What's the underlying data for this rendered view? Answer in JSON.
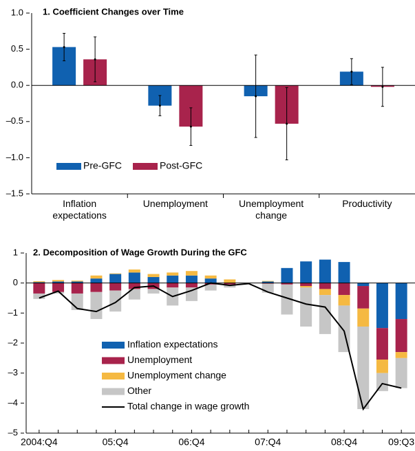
{
  "chart_data": [
    {
      "type": "bar_error",
      "title": "1. Coefficient Changes over Time",
      "categories": [
        "Inflation expectations",
        "Unemployment",
        "Unemployment change",
        "Productivity"
      ],
      "series": [
        {
          "name": "Pre-GFC",
          "color": "#1061b0",
          "values": [
            0.53,
            -0.28,
            -0.15,
            0.19
          ],
          "errors": [
            0.19,
            0.14,
            0.57,
            0.18
          ]
        },
        {
          "name": "Post-GFC",
          "color": "#a8234c",
          "values": [
            0.36,
            -0.57,
            -0.53,
            -0.02
          ],
          "errors": [
            0.31,
            0.26,
            0.5,
            0.27
          ]
        }
      ],
      "ylim": [
        -1.5,
        1.0
      ],
      "yticks": [
        {
          "value": -1.5,
          "label": "–1.5"
        },
        {
          "value": -1.0,
          "label": "–1.0"
        },
        {
          "value": -0.5,
          "label": "–0.5"
        },
        {
          "value": 0,
          "label": "0.0"
        },
        0.5,
        {
          "value": 1.0,
          "label": "1.0"
        }
      ],
      "legend": "lower-left"
    },
    {
      "type": "stacked_bar",
      "title": "2. Decomposition of Wage Growth During the GFC",
      "categories": [
        "2004:Q4",
        null,
        null,
        null,
        "05:Q4",
        null,
        null,
        null,
        "06:Q4",
        null,
        null,
        null,
        "07:Q4",
        null,
        null,
        null,
        "08:Q4",
        null,
        null,
        "09:Q3"
      ],
      "series": [
        {
          "name": "Inflation expectations",
          "color": "#1061b0",
          "values": [
            0.03,
            0.05,
            0.05,
            0.15,
            0.3,
            0.35,
            0.2,
            0.25,
            0.25,
            0.15,
            0.0,
            0.0,
            0.05,
            0.5,
            0.72,
            0.78,
            0.7,
            -0.1,
            -1.5,
            -1.2
          ]
        },
        {
          "name": "Unemployment",
          "color": "#a8234c",
          "values": [
            -0.35,
            -0.3,
            -0.35,
            -0.3,
            -0.25,
            -0.2,
            -0.2,
            -0.15,
            -0.15,
            -0.05,
            -0.05,
            0.0,
            -0.02,
            -0.05,
            -0.1,
            -0.2,
            -0.4,
            -0.75,
            -1.05,
            -1.1
          ]
        },
        {
          "name": "Unemployment change",
          "color": "#f5b942",
          "values": [
            0.03,
            0.05,
            0.03,
            0.1,
            0.02,
            0.1,
            0.1,
            0.1,
            0.15,
            0.1,
            0.12,
            0.0,
            0.02,
            0.0,
            -0.05,
            -0.2,
            -0.35,
            -0.6,
            -0.45,
            -0.2
          ]
        },
        {
          "name": "Other",
          "color": "#c6c6c6",
          "values": [
            -0.18,
            -0.05,
            -0.55,
            -0.9,
            -0.7,
            -0.35,
            -0.15,
            -0.6,
            -0.45,
            -0.2,
            -0.1,
            0.0,
            -0.3,
            -1.0,
            -1.3,
            -1.3,
            -1.55,
            -2.75,
            -0.6,
            -1.0
          ]
        },
        {
          "name": "Total change in wage growth",
          "color": "#000000",
          "type": "line",
          "values": [
            -0.5,
            -0.27,
            -0.85,
            -0.95,
            -0.65,
            -0.15,
            -0.1,
            -0.45,
            -0.25,
            0.0,
            -0.08,
            -0.02,
            -0.3,
            -0.5,
            -0.7,
            -0.8,
            -1.6,
            -4.2,
            -3.35,
            -3.5
          ]
        }
      ],
      "ylim": [
        -5,
        1
      ],
      "yticks": [
        {
          "value": -5,
          "label": "–5"
        },
        {
          "value": -4,
          "label": "–4"
        },
        {
          "value": -3,
          "label": "–3"
        },
        {
          "value": -2,
          "label": "–2"
        },
        {
          "value": -1,
          "label": "–1"
        },
        0,
        1
      ],
      "legend": "lower-left"
    }
  ]
}
